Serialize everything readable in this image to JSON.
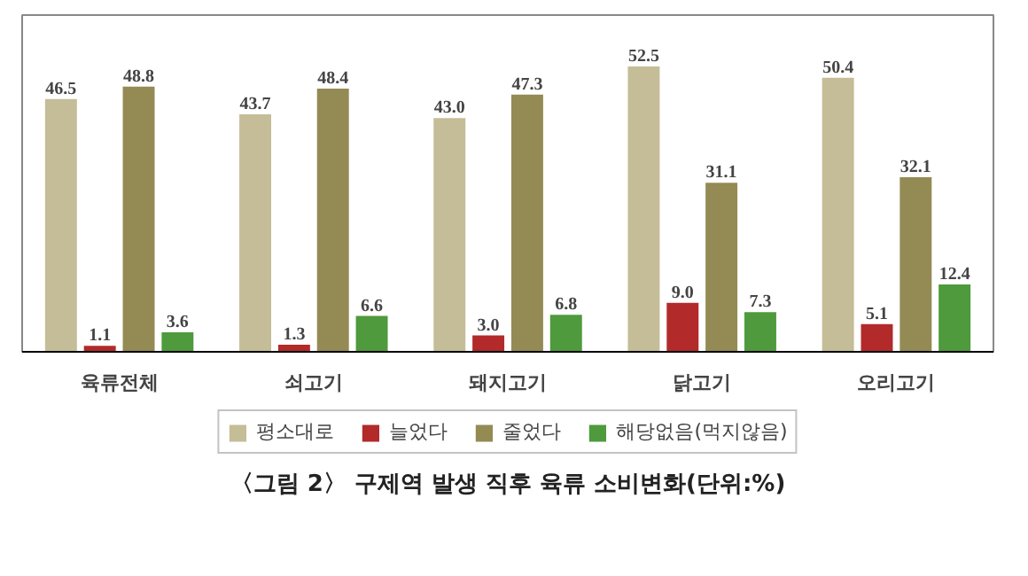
{
  "chart_data": {
    "type": "bar",
    "categories": [
      "육류전체",
      "쇠고기",
      "돼지고기",
      "닭고기",
      "오리고기"
    ],
    "series": [
      {
        "name": "평소대로",
        "color": "#c4bd97",
        "values": [
          46.5,
          43.7,
          43.0,
          52.5,
          50.4
        ],
        "value_labels": [
          "46.5",
          "43.7",
          "43.0",
          "52.5",
          "50.4"
        ]
      },
      {
        "name": "늘었다",
        "color": "#b22a2a",
        "values": [
          1.1,
          1.3,
          3.0,
          9.0,
          5.1
        ],
        "value_labels": [
          "1.1",
          "1.3",
          "3.0",
          "9.0",
          "5.1"
        ]
      },
      {
        "name": "줄었다",
        "color": "#948a54",
        "values": [
          48.8,
          48.4,
          47.3,
          31.1,
          32.1
        ],
        "value_labels": [
          "48.8",
          "48.4",
          "47.3",
          "31.1",
          "32.1"
        ]
      },
      {
        "name": "해당없음(먹지않음)",
        "color": "#4e9a3c",
        "values": [
          3.6,
          6.6,
          6.8,
          7.3,
          12.4
        ],
        "value_labels": [
          "3.6",
          "6.6",
          "6.8",
          "7.3",
          "12.4"
        ]
      }
    ],
    "legend": "bottom",
    "data_labels": true,
    "annotations": [
      "〈그림 2〉 구제역 발생 직후 육류 소비변화(단위:%)"
    ]
  }
}
